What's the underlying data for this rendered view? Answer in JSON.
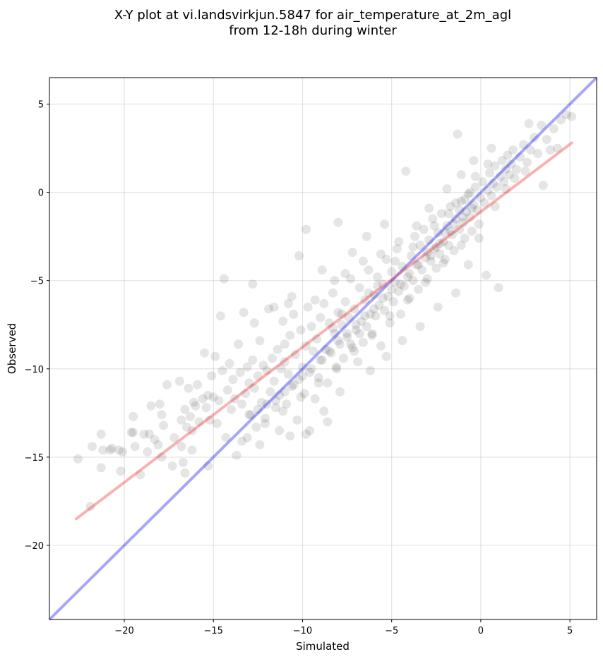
{
  "chart_data": {
    "type": "scatter",
    "title_line1": "X-Y plot at vi.landsvirkjun.5847 for air_temperature_at_2m_agl",
    "title_line2": "from 12-18h during winter",
    "xlabel": "Simulated",
    "ylabel": "Observed",
    "xlim": [
      -24.2,
      6.5
    ],
    "ylim": [
      -24.2,
      6.5
    ],
    "xticks": [
      -20,
      -15,
      -10,
      -5,
      0,
      5
    ],
    "yticks": [
      -20,
      -15,
      -10,
      -5,
      0,
      5
    ],
    "xtick_labels": [
      "−20",
      "−15",
      "−10",
      "−5",
      "0",
      "5"
    ],
    "ytick_labels": [
      "−20",
      "−15",
      "−10",
      "−5",
      "0",
      "5"
    ],
    "grid": true,
    "colors": {
      "points": "#000000",
      "identity_line": "#0000ee",
      "fit_line": "#ee2222"
    },
    "identity_line": {
      "x": [
        -24.2,
        6.5
      ],
      "y": [
        -24.2,
        6.5
      ]
    },
    "fit_line": {
      "x": [
        -22.7,
        5.1
      ],
      "y": [
        -18.5,
        2.8
      ]
    },
    "points": [
      [
        -22.6,
        -15.1
      ],
      [
        -21.9,
        -17.8
      ],
      [
        -21.8,
        -14.4
      ],
      [
        -21.3,
        -15.6
      ],
      [
        -21.2,
        -14.6
      ],
      [
        -21.3,
        -13.7
      ],
      [
        -20.7,
        -14.5
      ],
      [
        -20.3,
        -14.6
      ],
      [
        -20.1,
        -14.7
      ],
      [
        -20.2,
        -15.8
      ],
      [
        -19.5,
        -13.6
      ],
      [
        -19.5,
        -12.7
      ],
      [
        -19.4,
        -14.4
      ],
      [
        -19.1,
        -16.0
      ],
      [
        -18.9,
        -13.7
      ],
      [
        -18.7,
        -14.7
      ],
      [
        -18.5,
        -12.1
      ],
      [
        -18.3,
        -14.0
      ],
      [
        -18.1,
        -14.3
      ],
      [
        -18.0,
        -12.0
      ],
      [
        -17.9,
        -12.6
      ],
      [
        -17.8,
        -13.2
      ],
      [
        -17.6,
        -10.9
      ],
      [
        -17.3,
        -15.5
      ],
      [
        -17.2,
        -13.9
      ],
      [
        -16.9,
        -10.7
      ],
      [
        -16.8,
        -12.9
      ],
      [
        -16.8,
        -14.4
      ],
      [
        -16.7,
        -15.3
      ],
      [
        -16.6,
        -12.3
      ],
      [
        -16.5,
        -13.3
      ],
      [
        -16.4,
        -11.1
      ],
      [
        -16.3,
        -12.7
      ],
      [
        -16.2,
        -13.5
      ],
      [
        -16.1,
        -11.9
      ],
      [
        -16.0,
        -12.1
      ],
      [
        -15.9,
        -10.9
      ],
      [
        -15.8,
        -13.0
      ],
      [
        -15.6,
        -11.7
      ],
      [
        -15.5,
        -9.1
      ],
      [
        -15.4,
        -12.2
      ],
      [
        -15.3,
        -11.5
      ],
      [
        -15.2,
        -12.9
      ],
      [
        -15.1,
        -10.4
      ],
      [
        -15.0,
        -11.6
      ],
      [
        -14.9,
        -9.3
      ],
      [
        -14.7,
        -11.8
      ],
      [
        -14.5,
        -10.1
      ],
      [
        -14.3,
        -13.9
      ],
      [
        -14.2,
        -11.2
      ],
      [
        -14.1,
        -9.7
      ],
      [
        -14.0,
        -12.3
      ],
      [
        -13.9,
        -10.6
      ],
      [
        -13.8,
        -11.7
      ],
      [
        -13.7,
        -14.9
      ],
      [
        -13.6,
        -8.6
      ],
      [
        -13.5,
        -10.2
      ],
      [
        -13.4,
        -12.0
      ],
      [
        -13.3,
        -6.8
      ],
      [
        -13.2,
        -11.4
      ],
      [
        -13.1,
        -9.9
      ],
      [
        -13.0,
        -10.8
      ],
      [
        -12.9,
        -12.6
      ],
      [
        -12.8,
        -9.5
      ],
      [
        -12.7,
        -11.1
      ],
      [
        -12.6,
        -13.3
      ],
      [
        -12.5,
        -10.4
      ],
      [
        -12.4,
        -8.4
      ],
      [
        -12.3,
        -11.9
      ],
      [
        -12.2,
        -9.8
      ],
      [
        -12.1,
        -12.8
      ],
      [
        -12.0,
        -10.1
      ],
      [
        -11.9,
        -6.6
      ],
      [
        -11.8,
        -11.3
      ],
      [
        -11.7,
        -9.4
      ],
      [
        -11.6,
        -10.7
      ],
      [
        -11.5,
        -12.2
      ],
      [
        -11.4,
        -8.9
      ],
      [
        -11.3,
        -11.5
      ],
      [
        -11.2,
        -10.0
      ],
      [
        -11.1,
        -7.3
      ],
      [
        -11.0,
        -9.6
      ],
      [
        -10.9,
        -12.0
      ],
      [
        -10.8,
        -10.3
      ],
      [
        -10.7,
        -8.1
      ],
      [
        -10.6,
        -11.0
      ],
      [
        -10.5,
        -6.9
      ],
      [
        -10.4,
        -9.2
      ],
      [
        -10.3,
        -12.9
      ],
      [
        -10.2,
        -10.6
      ],
      [
        -10.1,
        -7.8
      ],
      [
        -10.0,
        -9.9
      ],
      [
        -9.9,
        -11.4
      ],
      [
        -9.8,
        -8.7
      ],
      [
        -9.7,
        -6.5
      ],
      [
        -9.6,
        -10.2
      ],
      [
        -9.5,
        -7.6
      ],
      [
        -9.4,
        -9.0
      ],
      [
        -9.3,
        -11.7
      ],
      [
        -9.2,
        -8.3
      ],
      [
        -9.1,
        -10.5
      ],
      [
        -9.0,
        -7.1
      ],
      [
        -8.9,
        -9.5
      ],
      [
        -8.8,
        -6.3
      ],
      [
        -8.7,
        -8.9
      ],
      [
        -8.6,
        -10.8
      ],
      [
        -8.5,
        -7.4
      ],
      [
        -8.4,
        -9.1
      ],
      [
        -8.3,
        -5.7
      ],
      [
        -8.2,
        -8.0
      ],
      [
        -8.1,
        -10.0
      ],
      [
        -8.0,
        -6.8
      ],
      [
        -7.9,
        -8.6
      ],
      [
        -7.8,
        -7.5
      ],
      [
        -7.7,
        -9.4
      ],
      [
        -7.6,
        -6.2
      ],
      [
        -7.5,
        -8.2
      ],
      [
        -7.4,
        -7.1
      ],
      [
        -7.3,
        -4.9
      ],
      [
        -7.2,
        -8.8
      ],
      [
        -7.1,
        -6.6
      ],
      [
        -7.0,
        -7.8
      ],
      [
        -6.9,
        -9.6
      ],
      [
        -6.8,
        -5.4
      ],
      [
        -6.7,
        -7.3
      ],
      [
        -6.6,
        -8.5
      ],
      [
        -6.5,
        -6.1
      ],
      [
        -6.4,
        -7.6
      ],
      [
        -6.3,
        -4.4
      ],
      [
        -6.2,
        -6.9
      ],
      [
        -6.1,
        -8.1
      ],
      [
        -6.0,
        -5.8
      ],
      [
        -5.9,
        -7.0
      ],
      [
        -5.8,
        -4.8
      ],
      [
        -5.7,
        -6.4
      ],
      [
        -5.6,
        -8.7
      ],
      [
        -5.5,
        -5.2
      ],
      [
        -5.4,
        -6.7
      ],
      [
        -5.3,
        -3.8
      ],
      [
        -5.2,
        -5.9
      ],
      [
        -5.1,
        -7.4
      ],
      [
        -5.0,
        -4.5
      ],
      [
        -4.9,
        -6.2
      ],
      [
        -4.8,
        -5.1
      ],
      [
        -4.7,
        -3.2
      ],
      [
        -4.6,
        -5.6
      ],
      [
        -4.5,
        -6.9
      ],
      [
        -4.4,
        -4.2
      ],
      [
        -4.3,
        -5.3
      ],
      [
        -4.2,
        1.2
      ],
      [
        -4.1,
        -4.8
      ],
      [
        -4.0,
        -6.0
      ],
      [
        -3.9,
        -3.6
      ],
      [
        -3.8,
        -5.0
      ],
      [
        -3.7,
        -2.5
      ],
      [
        -3.6,
        -4.1
      ],
      [
        -3.5,
        -5.5
      ],
      [
        -3.4,
        -3.0
      ],
      [
        -3.3,
        -4.4
      ],
      [
        -3.2,
        -2.1
      ],
      [
        -3.1,
        -3.7
      ],
      [
        -3.0,
        -4.9
      ],
      [
        -2.9,
        -2.7
      ],
      [
        -2.8,
        -3.9
      ],
      [
        -2.7,
        -1.5
      ],
      [
        -2.6,
        -3.2
      ],
      [
        -2.5,
        -4.3
      ],
      [
        -2.4,
        -2.3
      ],
      [
        -2.3,
        -3.5
      ],
      [
        -2.2,
        -1.2
      ],
      [
        -2.1,
        -2.8
      ],
      [
        -2.0,
        -3.8
      ],
      [
        -1.9,
        -1.9
      ],
      [
        -1.8,
        -3.0
      ],
      [
        -1.7,
        -0.8
      ],
      [
        -1.6,
        -2.4
      ],
      [
        -1.5,
        -3.3
      ],
      [
        -1.4,
        -1.5
      ],
      [
        -1.3,
        3.3
      ],
      [
        -1.2,
        -2.1
      ],
      [
        -1.1,
        -0.5
      ],
      [
        -1.0,
        -1.7
      ],
      [
        -0.9,
        -2.6
      ],
      [
        -0.8,
        -1.1
      ],
      [
        -0.7,
        -0.1
      ],
      [
        -0.6,
        -1.4
      ],
      [
        -0.5,
        -2.2
      ],
      [
        -0.4,
        -0.7
      ],
      [
        -0.3,
        0.3
      ],
      [
        -0.2,
        -1.0
      ],
      [
        -0.1,
        -1.8
      ],
      [
        0.0,
        -0.3
      ],
      [
        0.1,
        0.6
      ],
      [
        0.2,
        -0.6
      ],
      [
        0.3,
        -4.7
      ],
      [
        0.4,
        0.1
      ],
      [
        0.5,
        1.1
      ],
      [
        0.6,
        -0.2
      ],
      [
        0.7,
        0.5
      ],
      [
        0.8,
        1.5
      ],
      [
        0.9,
        0.3
      ],
      [
        1.0,
        -5.4
      ],
      [
        1.1,
        0.9
      ],
      [
        1.2,
        1.8
      ],
      [
        1.3,
        0.6
      ],
      [
        1.4,
        1.3
      ],
      [
        1.5,
        2.1
      ],
      [
        1.6,
        1.0
      ],
      [
        1.7,
        1.6
      ],
      [
        1.8,
        2.4
      ],
      [
        2.0,
        1.3
      ],
      [
        2.2,
        2.0
      ],
      [
        2.4,
        2.7
      ],
      [
        2.6,
        1.7
      ],
      [
        2.8,
        2.4
      ],
      [
        2.7,
        3.9
      ],
      [
        3.0,
        3.1
      ],
      [
        3.2,
        2.2
      ],
      [
        3.4,
        3.8
      ],
      [
        3.5,
        0.4
      ],
      [
        3.7,
        3.0
      ],
      [
        3.9,
        2.4
      ],
      [
        4.1,
        3.6
      ],
      [
        4.5,
        4.1
      ],
      [
        4.8,
        4.4
      ],
      [
        5.1,
        4.3
      ],
      [
        4.3,
        2.5
      ],
      [
        2.5,
        1.2
      ],
      [
        1.9,
        0.8
      ],
      [
        -0.5,
        -0.9
      ],
      [
        -1.0,
        -1.4
      ],
      [
        -1.5,
        -1.8
      ],
      [
        -2.0,
        -2.3
      ],
      [
        -2.5,
        -3.1
      ],
      [
        -3.0,
        -3.4
      ],
      [
        -1.8,
        -1.2
      ],
      [
        -0.9,
        -0.4
      ],
      [
        -2.3,
        -2.9
      ],
      [
        -1.2,
        -1.0
      ],
      [
        -1.7,
        -2.2
      ],
      [
        -0.6,
        0.0
      ],
      [
        -2.8,
        -3.6
      ],
      [
        -3.5,
        -4.1
      ],
      [
        -4.0,
        -4.6
      ],
      [
        -4.5,
        -5.2
      ],
      [
        -5.0,
        -5.5
      ],
      [
        -5.5,
        -6.0
      ],
      [
        -6.0,
        -6.6
      ],
      [
        -6.5,
        -7.0
      ],
      [
        -7.0,
        -7.5
      ],
      [
        -7.5,
        -8.0
      ],
      [
        -8.0,
        -8.4
      ],
      [
        -8.5,
        -9.0
      ],
      [
        -9.0,
        -9.5
      ],
      [
        -9.5,
        -10.0
      ],
      [
        -10.0,
        -10.4
      ],
      [
        -10.5,
        -10.9
      ],
      [
        -11.0,
        -11.3
      ],
      [
        -11.5,
        -11.8
      ],
      [
        -12.0,
        -12.0
      ],
      [
        -12.5,
        -12.3
      ],
      [
        -13.0,
        -12.6
      ],
      [
        -6.8,
        -8.0
      ],
      [
        -7.3,
        -8.6
      ],
      [
        -7.8,
        -6.9
      ],
      [
        -8.3,
        -7.7
      ],
      [
        -5.8,
        -5.3
      ],
      [
        -6.3,
        -5.7
      ],
      [
        -4.8,
        -3.9
      ],
      [
        -3.8,
        -3.1
      ],
      [
        -2.6,
        -1.9
      ],
      [
        -1.4,
        -0.6
      ],
      [
        -0.3,
        0.9
      ],
      [
        0.4,
        1.6
      ],
      [
        1.4,
        0.2
      ],
      [
        0.8,
        -0.8
      ],
      [
        -0.1,
        -2.6
      ],
      [
        -1.1,
        -3.0
      ],
      [
        -2.1,
        -4.0
      ],
      [
        -3.1,
        -5.1
      ],
      [
        -4.1,
        -6.1
      ],
      [
        -5.1,
        -7.0
      ],
      [
        -6.1,
        -8.0
      ],
      [
        -7.1,
        -9.0
      ],
      [
        -8.1,
        -9.9
      ],
      [
        -9.1,
        -10.8
      ],
      [
        -10.1,
        -11.6
      ],
      [
        -11.1,
        -12.4
      ],
      [
        -12.1,
        -13.1
      ],
      [
        -13.1,
        -13.9
      ],
      [
        -11.3,
        -13.5
      ],
      [
        -9.8,
        -13.7
      ],
      [
        -8.8,
        -12.4
      ],
      [
        -7.9,
        -11.3
      ],
      [
        -6.2,
        -10.1
      ],
      [
        -5.3,
        -9.3
      ],
      [
        -4.4,
        -8.4
      ],
      [
        -3.4,
        -7.6
      ],
      [
        -2.4,
        -6.5
      ],
      [
        -1.4,
        -5.7
      ],
      [
        -0.7,
        -4.1
      ],
      [
        -9.8,
        -2.1
      ],
      [
        -10.2,
        -3.6
      ],
      [
        -8.9,
        -4.4
      ],
      [
        -8.0,
        -1.7
      ],
      [
        -7.2,
        -3.4
      ],
      [
        -6.4,
        -2.5
      ],
      [
        -5.4,
        -1.8
      ],
      [
        -12.8,
        -5.2
      ],
      [
        -11.6,
        -6.5
      ],
      [
        -10.6,
        -5.9
      ],
      [
        -14.4,
        -4.9
      ],
      [
        -11.0,
        -8.6
      ],
      [
        -12.7,
        -7.4
      ],
      [
        -14.6,
        -7.0
      ],
      [
        -9.3,
        -6.1
      ],
      [
        -10.8,
        -6.3
      ],
      [
        -8.2,
        -5.0
      ],
      [
        -7.6,
        -4.6
      ],
      [
        -6.6,
        -3.9
      ],
      [
        -5.6,
        -3.5
      ],
      [
        -4.6,
        -2.8
      ],
      [
        -3.6,
        -1.9
      ],
      [
        -2.9,
        -0.9
      ],
      [
        -1.9,
        0.2
      ],
      [
        -1.1,
        1.0
      ],
      [
        -0.4,
        1.8
      ],
      [
        0.6,
        2.5
      ],
      [
        -8.6,
        -13.0
      ],
      [
        -9.6,
        -13.5
      ],
      [
        -10.7,
        -13.8
      ],
      [
        -12.4,
        -14.3
      ],
      [
        -13.4,
        -14.1
      ],
      [
        -14.8,
        -13.1
      ],
      [
        -15.3,
        -15.5
      ],
      [
        -16.6,
        -15.9
      ],
      [
        -18.6,
        -13.7
      ],
      [
        -19.6,
        -13.6
      ],
      [
        -20.8,
        -14.6
      ],
      [
        -17.9,
        -15.0
      ],
      [
        -16.2,
        -14.6
      ]
    ]
  }
}
